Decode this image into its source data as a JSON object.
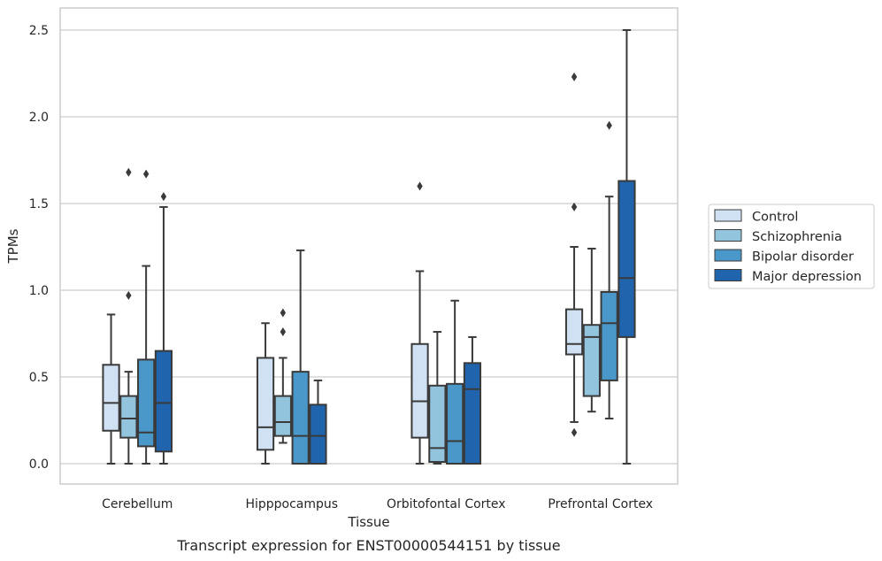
{
  "caption": "Transcript expression for ENST00000544151 by tissue",
  "chart_data": {
    "type": "box",
    "title": "",
    "xlabel": "Tissue",
    "ylabel": "TPMs",
    "ylim": [
      -0.12,
      2.63
    ],
    "yticks": [
      0.0,
      0.5,
      1.0,
      1.5,
      2.0,
      2.5
    ],
    "ytick_labels": [
      "0.0",
      "0.5",
      "1.0",
      "1.5",
      "2.0",
      "2.5"
    ],
    "grid": "horizontal",
    "legend_position": "right",
    "categories": [
      "Cerebellum",
      "Hipppocampus",
      "Orbitofontal Cortex",
      "Prefrontal Cortex"
    ],
    "series": [
      {
        "name": "Control",
        "color": "#cfe1f2",
        "boxes": [
          {
            "whisker_low": 0.0,
            "q1": 0.19,
            "median": 0.35,
            "q3": 0.57,
            "whisker_high": 0.86,
            "outliers": []
          },
          {
            "whisker_low": 0.0,
            "q1": 0.08,
            "median": 0.21,
            "q3": 0.61,
            "whisker_high": 0.81,
            "outliers": []
          },
          {
            "whisker_low": 0.0,
            "q1": 0.15,
            "median": 0.36,
            "q3": 0.69,
            "whisker_high": 1.11,
            "outliers": [
              1.6
            ]
          },
          {
            "whisker_low": 0.24,
            "q1": 0.63,
            "median": 0.69,
            "q3": 0.89,
            "whisker_high": 1.25,
            "outliers": [
              0.18,
              1.48,
              2.23
            ]
          }
        ]
      },
      {
        "name": "Schizophrenia",
        "color": "#93c4de",
        "boxes": [
          {
            "whisker_low": 0.0,
            "q1": 0.15,
            "median": 0.26,
            "q3": 0.39,
            "whisker_high": 0.53,
            "outliers": [
              0.97,
              1.68
            ]
          },
          {
            "whisker_low": 0.12,
            "q1": 0.16,
            "median": 0.24,
            "q3": 0.39,
            "whisker_high": 0.61,
            "outliers": [
              0.76,
              0.87
            ]
          },
          {
            "whisker_low": 0.0,
            "q1": 0.01,
            "median": 0.09,
            "q3": 0.45,
            "whisker_high": 0.76,
            "outliers": []
          },
          {
            "whisker_low": 0.3,
            "q1": 0.39,
            "median": 0.73,
            "q3": 0.8,
            "whisker_high": 1.24,
            "outliers": []
          }
        ]
      },
      {
        "name": "Bipolar disorder",
        "color": "#4a98c9",
        "boxes": [
          {
            "whisker_low": 0.0,
            "q1": 0.1,
            "median": 0.18,
            "q3": 0.6,
            "whisker_high": 1.14,
            "outliers": [
              1.67
            ]
          },
          {
            "whisker_low": 0.0,
            "q1": 0.0,
            "median": 0.16,
            "q3": 0.53,
            "whisker_high": 1.23,
            "outliers": []
          },
          {
            "whisker_low": 0.0,
            "q1": 0.0,
            "median": 0.13,
            "q3": 0.46,
            "whisker_high": 0.94,
            "outliers": []
          },
          {
            "whisker_low": 0.26,
            "q1": 0.48,
            "median": 0.81,
            "q3": 0.99,
            "whisker_high": 1.54,
            "outliers": [
              1.95
            ]
          }
        ]
      },
      {
        "name": "Major depression",
        "color": "#1f64ad",
        "boxes": [
          {
            "whisker_low": 0.0,
            "q1": 0.07,
            "median": 0.35,
            "q3": 0.65,
            "whisker_high": 1.48,
            "outliers": [
              1.54
            ]
          },
          {
            "whisker_low": 0.0,
            "q1": 0.0,
            "median": 0.16,
            "q3": 0.34,
            "whisker_high": 0.48,
            "outliers": []
          },
          {
            "whisker_low": 0.0,
            "q1": 0.0,
            "median": 0.43,
            "q3": 0.58,
            "whisker_high": 0.73,
            "outliers": []
          },
          {
            "whisker_low": 0.0,
            "q1": 0.73,
            "median": 1.07,
            "q3": 1.63,
            "whisker_high": 2.5,
            "outliers": []
          }
        ]
      }
    ]
  }
}
